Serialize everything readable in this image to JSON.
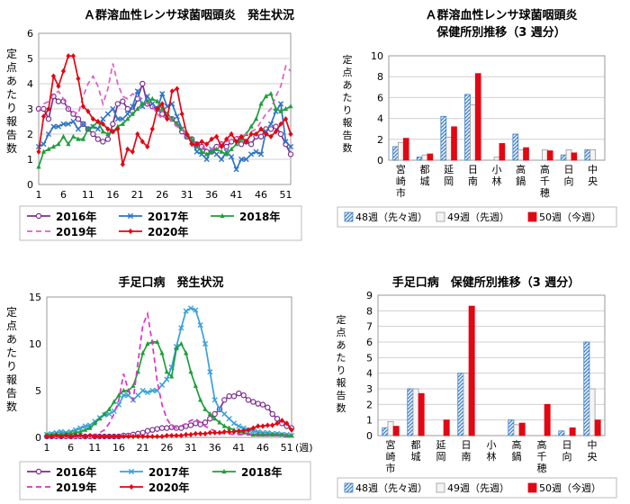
{
  "chart_data": [
    {
      "id": "strep",
      "type": "line",
      "title": "Ａ群溶血性レンサ球菌咽頭炎　発生状況",
      "ylabel": "定点あたり報告数",
      "xlabel": "",
      "ylim": [
        0,
        6
      ],
      "yticks": [
        "0",
        "1",
        "2",
        "3",
        "4",
        "5",
        "6"
      ],
      "x_ticks": [
        "1",
        "6",
        "11",
        "16",
        "21",
        "26",
        "31",
        "36",
        "41",
        "46",
        "51"
      ],
      "x_count": 52,
      "grid": true,
      "legend": "bottom",
      "series": [
        {
          "name": "2016年",
          "color": "#7b2f8e",
          "dash": "none",
          "marker": "circle-open",
          "values": [
            3.0,
            3.0,
            2.6,
            3.5,
            3.3,
            3.3,
            3.0,
            2.8,
            2.6,
            2.4,
            2.2,
            2.0,
            1.8,
            1.7,
            1.8,
            2.4,
            3.2,
            3.3,
            3.0,
            2.9,
            3.4,
            4.0,
            3.2,
            3.1,
            3.0,
            2.8,
            2.7,
            2.6,
            2.4,
            2.1,
            1.9,
            1.8,
            1.6,
            1.5,
            1.3,
            1.3,
            1.5,
            1.6,
            1.5,
            1.7,
            1.8,
            1.6,
            1.7,
            1.6,
            1.9,
            1.9,
            2.2,
            2.2,
            2.3,
            2.0,
            1.6,
            1.2
          ]
        },
        {
          "name": "2017年",
          "color": "#2e74c6",
          "dash": "none",
          "marker": "x",
          "values": [
            1.5,
            1.6,
            2.0,
            2.3,
            2.3,
            2.4,
            2.4,
            2.5,
            2.2,
            2.4,
            2.2,
            2.3,
            2.2,
            2.6,
            2.8,
            3.0,
            2.6,
            2.6,
            2.8,
            3.1,
            3.7,
            3.1,
            3.5,
            3.2,
            3.0,
            3.6,
            3.1,
            3.2,
            2.7,
            2.2,
            1.9,
            1.7,
            1.3,
            1.2,
            1.0,
            1.4,
            1.2,
            1.0,
            1.3,
            1.1,
            0.6,
            1.0,
            1.0,
            1.2,
            1.3,
            1.2,
            2.1,
            2.4,
            2.9,
            3.2,
            1.7,
            1.5
          ]
        },
        {
          "name": "2018年",
          "color": "#1f9e3a",
          "dash": "none",
          "marker": "triangle",
          "values": [
            0.7,
            1.3,
            1.4,
            1.5,
            1.6,
            1.9,
            1.6,
            1.9,
            1.8,
            1.8,
            2.2,
            2.3,
            2.5,
            2.1,
            2.0,
            2.1,
            2.3,
            2.4,
            2.6,
            2.8,
            3.0,
            3.2,
            3.3,
            3.4,
            3.3,
            3.0,
            2.8,
            2.6,
            2.4,
            2.2,
            2.0,
            1.8,
            1.5,
            1.3,
            1.2,
            1.3,
            1.4,
            1.3,
            1.2,
            1.4,
            1.6,
            1.8,
            2.0,
            2.3,
            2.6,
            3.2,
            3.5,
            3.6,
            3.0,
            2.9,
            3.0,
            3.1
          ]
        },
        {
          "name": "2019年",
          "color": "#e05cc6",
          "dash": "6,4",
          "marker": "none",
          "values": [
            2.9,
            3.2,
            3.3,
            3.6,
            3.7,
            3.4,
            3.0,
            2.9,
            2.8,
            3.5,
            4.0,
            4.3,
            3.9,
            3.2,
            3.8,
            4.8,
            4.0,
            3.5,
            3.4,
            3.6,
            3.5,
            3.4,
            3.2,
            3.1,
            2.8,
            2.6,
            2.8,
            2.5,
            2.3,
            2.2,
            1.9,
            1.7,
            1.6,
            1.5,
            1.4,
            1.4,
            1.5,
            1.6,
            1.7,
            1.8,
            1.9,
            1.9,
            2.0,
            2.1,
            2.2,
            2.5,
            2.8,
            3.0,
            3.5,
            3.9,
            4.7,
            4.5
          ]
        },
        {
          "name": "2020年",
          "color": "#e30613",
          "dash": "none",
          "marker": "diamond",
          "values": [
            1.3,
            2.7,
            3.0,
            4.3,
            3.9,
            4.5,
            5.1,
            5.1,
            4.2,
            3.1,
            2.9,
            2.6,
            2.5,
            2.4,
            2.2,
            2.1,
            2.2,
            0.8,
            1.4,
            1.3,
            2.0,
            1.7,
            1.5,
            2.2,
            3.0,
            3.2,
            2.6,
            3.7,
            3.8,
            2.8,
            2.0,
            1.6,
            1.6,
            1.7,
            1.6,
            1.8,
            1.9,
            1.5,
            1.8,
            2.0,
            1.7,
            1.9,
            1.7,
            2.0,
            2.0,
            2.2,
            2.0,
            1.9,
            2.1,
            2.4,
            2.6,
            2.0
          ]
        }
      ]
    },
    {
      "id": "strep-hc",
      "type": "bar",
      "title": "Ａ群溶血性レンサ球菌咽頭炎",
      "subtitle": "保健所別推移（3 週分）",
      "ylabel": "定点あたり報告数",
      "ylim": [
        0,
        10
      ],
      "yticks": [
        "0",
        "2",
        "4",
        "6",
        "8",
        "10"
      ],
      "categories": [
        "宮崎市",
        "都城",
        "延岡",
        "日南",
        "小林",
        "高鍋",
        "高千穂",
        "日向",
        "中央"
      ],
      "legend": "bottom",
      "series": [
        {
          "name": "48週（先々週）",
          "style": "hatch",
          "color": "#3a7dc9",
          "values": [
            1.3,
            0.3,
            4.2,
            6.3,
            0.0,
            2.5,
            0.0,
            0.5,
            1.0
          ]
        },
        {
          "name": "49週（先週）",
          "style": "light",
          "color": "#bfbfbf",
          "values": [
            1.7,
            0.5,
            2.2,
            5.3,
            0.3,
            1.0,
            1.0,
            1.0,
            1.0
          ]
        },
        {
          "name": "50週（今週）",
          "style": "solid",
          "color": "#e30613",
          "values": [
            2.1,
            0.6,
            3.2,
            8.3,
            1.6,
            1.2,
            0.9,
            0.7,
            0.0
          ]
        }
      ]
    },
    {
      "id": "hfmd",
      "type": "line",
      "title": "手足口病　発生状況",
      "ylabel": "定点あたり報告数",
      "xlabel": "(週)",
      "ylim": [
        0,
        15
      ],
      "yticks": [
        "0",
        "5",
        "10",
        "15"
      ],
      "x_ticks": [
        "1",
        "6",
        "11",
        "16",
        "21",
        "26",
        "31",
        "36",
        "41",
        "46",
        "51"
      ],
      "x_count": 52,
      "grid": false,
      "legend": "bottom",
      "series": [
        {
          "name": "2016年",
          "color": "#7b2f8e",
          "dash": "none",
          "marker": "circle-open",
          "values": [
            0.1,
            0.1,
            0.1,
            0.1,
            0.1,
            0.1,
            0.1,
            0.1,
            0.1,
            0.1,
            0.1,
            0.1,
            0.1,
            0.1,
            0.1,
            0.1,
            0.2,
            0.2,
            0.3,
            0.4,
            0.5,
            0.7,
            0.8,
            0.9,
            1.0,
            1.0,
            1.1,
            1.0,
            1.0,
            1.2,
            1.3,
            1.5,
            1.4,
            1.6,
            2.0,
            2.5,
            3.0,
            4.0,
            4.4,
            4.4,
            4.7,
            4.5,
            4.0,
            3.8,
            3.6,
            3.5,
            3.2,
            2.5,
            2.0,
            1.5,
            1.2,
            1.0
          ]
        },
        {
          "name": "2017年",
          "color": "#3aa0d8",
          "dash": "none",
          "marker": "x",
          "values": [
            0.3,
            0.4,
            0.5,
            0.6,
            0.5,
            0.6,
            0.8,
            1.0,
            1.2,
            1.3,
            1.7,
            2.1,
            2.4,
            2.5,
            2.8,
            3.5,
            4.5,
            4.5,
            4.0,
            4.5,
            5.0,
            4.8,
            5.0,
            5.0,
            5.6,
            6.2,
            7.5,
            9.7,
            11.7,
            13.5,
            13.8,
            13.6,
            12.0,
            10.0,
            7.0,
            4.0,
            3.0,
            2.5,
            2.0,
            1.5,
            1.2,
            1.0,
            0.8,
            0.7,
            0.6,
            0.5,
            0.5,
            0.4,
            0.4,
            0.3,
            0.3,
            0.2
          ]
        },
        {
          "name": "2018年",
          "color": "#1f9e3a",
          "dash": "none",
          "marker": "triangle",
          "values": [
            0.3,
            0.3,
            0.3,
            0.3,
            0.4,
            0.4,
            0.5,
            0.6,
            0.8,
            1.0,
            1.5,
            2.0,
            2.5,
            3.0,
            3.8,
            4.5,
            5.0,
            5.0,
            5.5,
            7.0,
            9.0,
            10.0,
            10.2,
            10.2,
            9.0,
            7.0,
            6.5,
            9.5,
            10.0,
            9.0,
            7.0,
            5.5,
            4.0,
            3.0,
            2.5,
            2.0,
            1.6,
            1.2,
            1.0,
            0.8,
            0.6,
            0.5,
            0.4,
            0.3,
            0.3,
            0.3,
            0.3,
            0.3,
            0.3,
            0.3,
            0.2,
            0.2
          ]
        },
        {
          "name": "2019年",
          "color": "#e02fc8",
          "dash": "6,4",
          "marker": "none",
          "values": [
            0.1,
            0.1,
            0.1,
            0.1,
            0.1,
            0.1,
            0.1,
            0.1,
            0.1,
            0.2,
            0.3,
            0.5,
            0.8,
            1.5,
            2.5,
            4.0,
            6.8,
            5.0,
            4.0,
            8.0,
            12.0,
            13.2,
            10.0,
            6.0,
            3.5,
            2.0,
            1.2,
            1.0,
            1.2,
            1.5,
            1.8,
            2.0,
            1.6,
            1.2,
            0.9,
            0.7,
            0.5,
            0.4,
            0.4,
            0.3,
            0.3,
            0.3,
            0.3,
            0.3,
            0.2,
            0.2,
            0.2,
            0.2,
            0.2,
            0.2,
            0.2,
            0.2
          ]
        },
        {
          "name": "2020年",
          "color": "#e30613",
          "dash": "none",
          "marker": "diamond",
          "values": [
            0.1,
            0.1,
            0.2,
            0.1,
            0.2,
            0.1,
            0.2,
            0.2,
            0.1,
            0.2,
            0.1,
            0.1,
            0.1,
            0.1,
            0.1,
            0.1,
            0.1,
            0.1,
            0.1,
            0.1,
            0.1,
            0.1,
            0.1,
            0.1,
            0.1,
            0.2,
            0.2,
            0.2,
            0.2,
            0.3,
            0.3,
            0.4,
            0.4,
            0.4,
            0.5,
            0.5,
            0.5,
            0.6,
            0.6,
            0.6,
            0.7,
            0.7,
            0.8,
            1.0,
            1.2,
            1.2,
            1.3,
            1.3,
            1.5,
            1.8,
            1.5,
            0.8
          ]
        }
      ]
    },
    {
      "id": "hfmd-hc",
      "type": "bar",
      "title": "手足口病　保健所別推移（3 週分）",
      "ylabel": "定点あたり報告数",
      "ylim": [
        0,
        9
      ],
      "yticks": [
        "0",
        "1",
        "2",
        "3",
        "4",
        "5",
        "6",
        "7",
        "8",
        "9"
      ],
      "categories": [
        "宮崎市",
        "都城",
        "延岡",
        "日南",
        "小林",
        "高鍋",
        "高千穂",
        "日向",
        "中央"
      ],
      "legend": "bottom",
      "series": [
        {
          "name": "48週（先々週）",
          "style": "hatch",
          "color": "#3a7dc9",
          "values": [
            0.5,
            3.0,
            0.0,
            4.0,
            0.0,
            1.0,
            0.0,
            0.3,
            6.0
          ]
        },
        {
          "name": "49週（先週）",
          "style": "light",
          "color": "#bfbfbf",
          "values": [
            0.9,
            3.0,
            0.0,
            4.0,
            0.0,
            0.7,
            0.0,
            0.0,
            3.0
          ]
        },
        {
          "name": "50週（今週）",
          "style": "solid",
          "color": "#e30613",
          "values": [
            0.6,
            2.7,
            1.0,
            8.3,
            0.0,
            0.8,
            2.0,
            0.5,
            1.0
          ]
        }
      ]
    }
  ]
}
